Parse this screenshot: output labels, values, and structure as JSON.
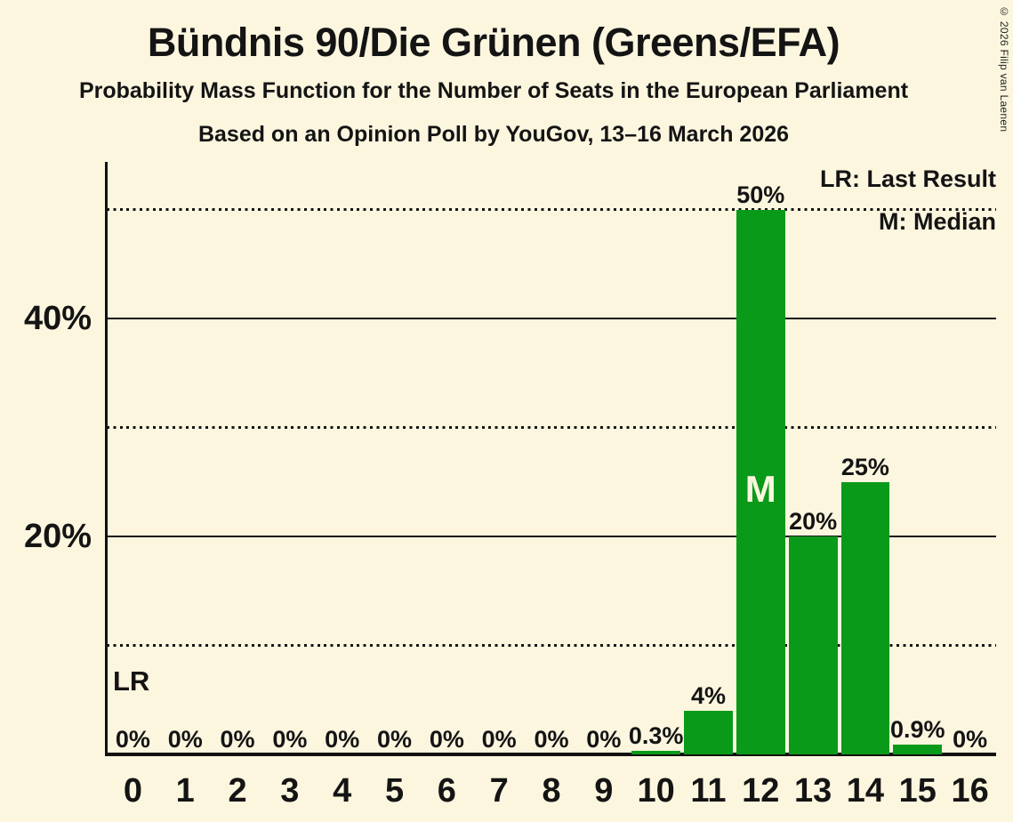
{
  "header": {
    "title": "Bündnis 90/Die Grünen (Greens/EFA)",
    "subtitle": "Probability Mass Function for the Number of Seats in the European Parliament",
    "poll_line": "Based on an Opinion Poll by YouGov, 13–16 March 2026"
  },
  "legend": {
    "lr_label": "LR: Last Result",
    "m_label": "M: Median"
  },
  "copyright": "© 2026 Filip van Laenen",
  "chart_data": {
    "type": "bar",
    "title": "Bündnis 90/Die Grünen (Greens/EFA)",
    "subtitle": "Probability Mass Function for the Number of Seats in the European Parliament",
    "source_line": "Based on an Opinion Poll by YouGov, 13–16 March 2026",
    "categories": [
      "0",
      "1",
      "2",
      "3",
      "4",
      "5",
      "6",
      "7",
      "8",
      "9",
      "10",
      "11",
      "12",
      "13",
      "14",
      "15",
      "16"
    ],
    "values": [
      0,
      0,
      0,
      0,
      0,
      0,
      0,
      0,
      0,
      0,
      0.3,
      4,
      50,
      20,
      25,
      0.9,
      0
    ],
    "bar_labels": [
      "0%",
      "0%",
      "0%",
      "0%",
      "0%",
      "0%",
      "0%",
      "0%",
      "0%",
      "0%",
      "0.3%",
      "4%",
      "50%",
      "20%",
      "25%",
      "0.9%",
      "0%"
    ],
    "median_category": "12",
    "median_marker": "M",
    "last_result_label": "LR",
    "last_result_category": "0",
    "y_ticks": [
      {
        "pct": 20,
        "label": "20%"
      },
      {
        "pct": 40,
        "label": "40%"
      }
    ],
    "solid_gridlines_pct": [
      20,
      40
    ],
    "dotted_gridlines_pct": [
      10,
      30,
      50
    ],
    "ylim": [
      0,
      54.4
    ],
    "grid": "horizontal-only",
    "legend_position": "top-right",
    "legend_entries": [
      "LR: Last Result",
      "M: Median"
    ],
    "colors": {
      "bar": "#0a9a19",
      "background": "#fcf6df",
      "text": "#141414",
      "axis": "#111111",
      "median_text": "#fcf6df"
    }
  }
}
